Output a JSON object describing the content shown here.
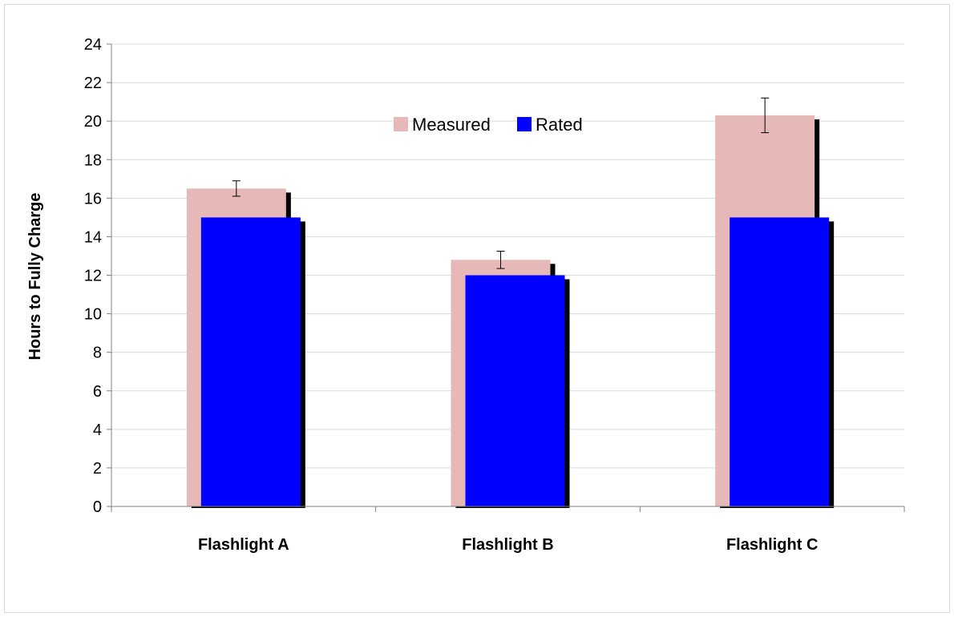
{
  "chart_data": {
    "type": "bar",
    "title": "",
    "xlabel": "",
    "ylabel": "Hours to Fully Charge",
    "categories": [
      "Flashlight A",
      "Flashlight B",
      "Flashlight C"
    ],
    "ylim": [
      0,
      24
    ],
    "yticks": [
      0,
      2,
      4,
      6,
      8,
      10,
      12,
      14,
      16,
      18,
      20,
      22,
      24
    ],
    "grid": true,
    "legend": "top-center",
    "series": [
      {
        "name": "Measured",
        "values": [
          16.5,
          12.8,
          20.3
        ],
        "error": [
          0.4,
          0.45,
          0.9
        ],
        "color": "#e6b8b7"
      },
      {
        "name": "Rated",
        "values": [
          15,
          12,
          15
        ],
        "color": "#0000ff"
      }
    ],
    "colors": {
      "gridline": "#d9d9d9",
      "axis": "#808080",
      "shadow": "#000000"
    }
  }
}
